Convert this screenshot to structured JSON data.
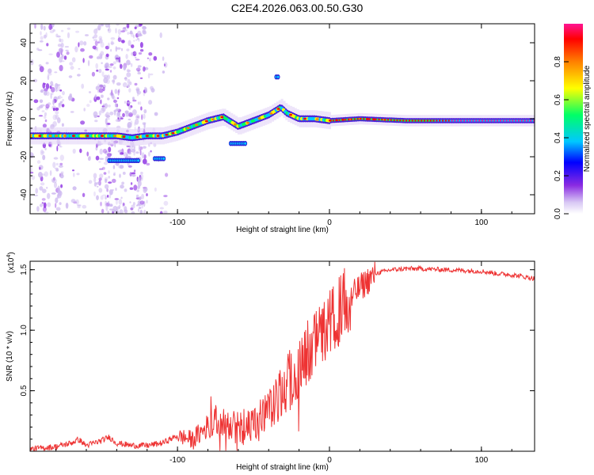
{
  "page_title": "C2E4.2026.063.00.50.G30",
  "chart_data": [
    {
      "type": "heatmap",
      "title": "C2E4.2026.063.00.50.G30",
      "xlabel": "Height of straight line (km)",
      "ylabel": "Frequency (Hz)",
      "xlim": [
        -197,
        135
      ],
      "ylim": [
        -50,
        50
      ],
      "xticks": [
        -100,
        0,
        100
      ],
      "xtick_labels": [
        "-100",
        "0",
        "100"
      ],
      "yticks": [
        -40,
        -20,
        0,
        20,
        40
      ],
      "ytick_labels": [
        "-40",
        "-20",
        "0",
        "20",
        "40"
      ],
      "colorbar": {
        "label": "Normalized spectral amplitude",
        "range": [
          0,
          1
        ],
        "ticks": [
          0.0,
          0.2,
          0.4,
          0.6,
          0.8
        ],
        "tick_labels": [
          "0.0",
          "0.2",
          "0.4",
          "0.6",
          "0.8"
        ],
        "colormap": [
          "#d8c8f4",
          "#8a2be2",
          "#0000ff",
          "#00c8ff",
          "#00ff66",
          "#ffff00",
          "#ff8000",
          "#ff0000",
          "#ff1493"
        ]
      },
      "ridge": {
        "x": [
          -197,
          -170,
          -150,
          -140,
          -130,
          -120,
          -110,
          -100,
          -90,
          -80,
          -70,
          -60,
          -50,
          -40,
          -32,
          -28,
          -20,
          -10,
          0,
          20,
          50,
          100,
          135
        ],
        "freq": [
          -9,
          -9,
          -9,
          -9,
          -10,
          -9,
          -9,
          -7,
          -4,
          -1,
          1,
          -4,
          -1,
          2,
          6,
          3,
          0,
          0,
          -1,
          0,
          -1,
          -1,
          -1
        ]
      },
      "features": [
        {
          "x": [
            -145,
            -125
          ],
          "freq": -22
        },
        {
          "x": [
            -115,
            -108
          ],
          "freq": -21
        },
        {
          "x": [
            -65,
            -55
          ],
          "freq": -13
        },
        {
          "x": [
            -35,
            -33
          ],
          "freq": 22
        }
      ]
    },
    {
      "type": "line",
      "xlabel": "Height of straight line (km)",
      "ylabel": "SNR (10 * v/v)",
      "scale_label": "(x10",
      "scale_exp": "4",
      "xlim": [
        -197,
        135
      ],
      "ylim": [
        0,
        1.57
      ],
      "xticks": [
        -100,
        0,
        100
      ],
      "xtick_labels": [
        "-100",
        "0",
        "100"
      ],
      "yticks": [
        0.5,
        1.0,
        1.5
      ],
      "ytick_labels": [
        "0.5",
        "1.0",
        "1.5"
      ],
      "series": [
        {
          "name": "SNR",
          "color": "#ee3333",
          "x": [
            -197,
            -180,
            -170,
            -165,
            -160,
            -150,
            -145,
            -140,
            -130,
            -120,
            -110,
            -105,
            -100,
            -95,
            -90,
            -85,
            -80,
            -75,
            -70,
            -65,
            -60,
            -55,
            -50,
            -45,
            -40,
            -35,
            -30,
            -25,
            -20,
            -15,
            -10,
            -5,
            0,
            5,
            10,
            15,
            20,
            25,
            30,
            40,
            50,
            60,
            80,
            100,
            110,
            120,
            130,
            135
          ],
          "y": [
            0.02,
            0.04,
            0.07,
            0.1,
            0.05,
            0.09,
            0.12,
            0.07,
            0.05,
            0.05,
            0.07,
            0.1,
            0.13,
            0.12,
            0.1,
            0.16,
            0.22,
            0.26,
            0.24,
            0.21,
            0.23,
            0.19,
            0.21,
            0.28,
            0.36,
            0.42,
            0.52,
            0.62,
            0.7,
            0.82,
            0.92,
            1.0,
            1.08,
            1.16,
            1.24,
            1.3,
            1.36,
            1.42,
            1.47,
            1.5,
            1.51,
            1.51,
            1.5,
            1.49,
            1.47,
            1.46,
            1.44,
            1.43
          ]
        }
      ]
    }
  ]
}
